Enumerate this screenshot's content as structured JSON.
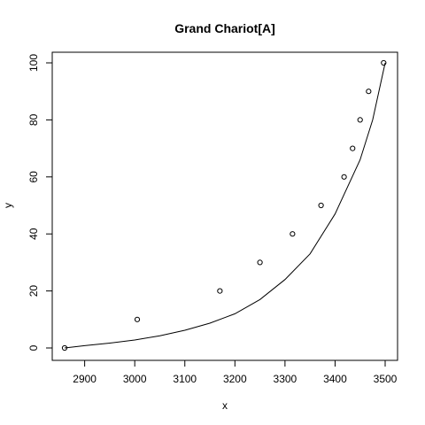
{
  "chart_data": {
    "type": "scatter",
    "title": "Grand Chariot[A]",
    "xlabel": "x",
    "ylabel": "y",
    "xlim": [
      2860,
      3500
    ],
    "ylim": [
      0,
      100
    ],
    "x_ticks": [
      2900,
      3000,
      3100,
      3200,
      3300,
      3400,
      3500
    ],
    "y_ticks": [
      0,
      20,
      40,
      60,
      80,
      100
    ],
    "x_tick_labels": [
      "2900",
      "3000",
      "3100",
      "3200",
      "3300",
      "3400",
      "3500"
    ],
    "y_tick_labels": [
      "0",
      "20",
      "40",
      "60",
      "80",
      "100"
    ],
    "grid": false,
    "series": [
      {
        "type": "scatter",
        "marker": "open-circle",
        "color": "#000000",
        "points": [
          {
            "x": 2860,
            "y": 0
          },
          {
            "x": 3005,
            "y": 10
          },
          {
            "x": 3170,
            "y": 20
          },
          {
            "x": 3250,
            "y": 30
          },
          {
            "x": 3315,
            "y": 40
          },
          {
            "x": 3372,
            "y": 50
          },
          {
            "x": 3418,
            "y": 60
          },
          {
            "x": 3435,
            "y": 70
          },
          {
            "x": 3450,
            "y": 80
          },
          {
            "x": 3467,
            "y": 90
          },
          {
            "x": 3497,
            "y": 100
          }
        ]
      },
      {
        "type": "line",
        "color": "#000000",
        "points": [
          {
            "x": 2860,
            "y": 0
          },
          {
            "x": 2900,
            "y": 0.8
          },
          {
            "x": 2950,
            "y": 1.7
          },
          {
            "x": 3000,
            "y": 2.8
          },
          {
            "x": 3050,
            "y": 4.3
          },
          {
            "x": 3100,
            "y": 6.2
          },
          {
            "x": 3150,
            "y": 8.7
          },
          {
            "x": 3200,
            "y": 12
          },
          {
            "x": 3250,
            "y": 17
          },
          {
            "x": 3300,
            "y": 24
          },
          {
            "x": 3350,
            "y": 33
          },
          {
            "x": 3400,
            "y": 47
          },
          {
            "x": 3450,
            "y": 66
          },
          {
            "x": 3475,
            "y": 80
          },
          {
            "x": 3500,
            "y": 100
          }
        ]
      }
    ]
  }
}
